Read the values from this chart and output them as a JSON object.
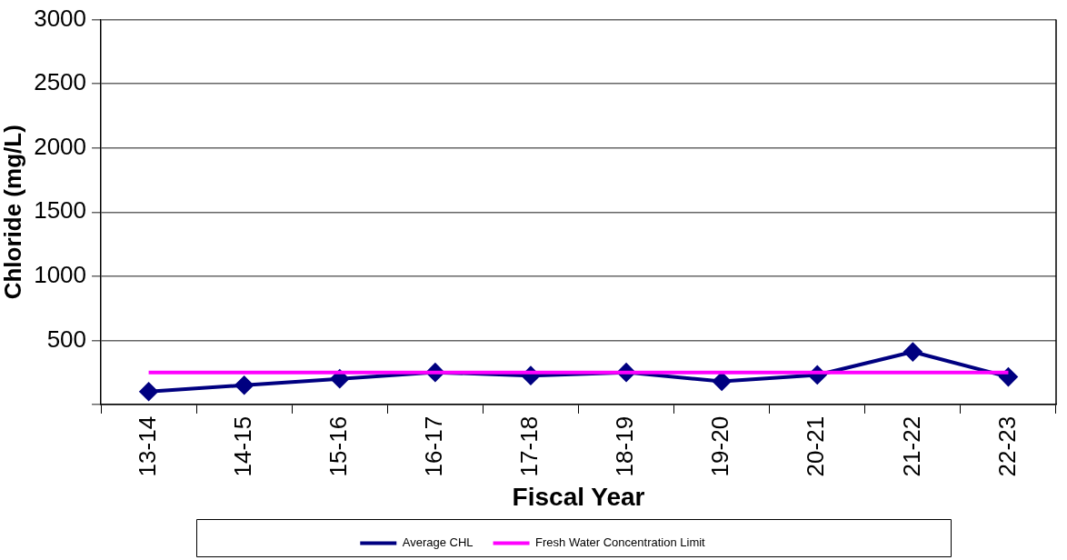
{
  "chart_data": {
    "type": "line",
    "xlabel": "Fiscal Year",
    "ylabel": "Chloride (mg/L)",
    "categories": [
      "13-14",
      "14-15",
      "15-16",
      "16-17",
      "17-18",
      "18-19",
      "19-20",
      "20-21",
      "21-22",
      "22-23"
    ],
    "series": [
      {
        "name": "Average CHL",
        "color": "#000080",
        "marker": "diamond",
        "values": [
          100,
          150,
          200,
          250,
          225,
          250,
          180,
          230,
          410,
          215
        ]
      },
      {
        "name": "Fresh Water Concentration Limit",
        "color": "#ff00ff",
        "marker": "none",
        "values": [
          250,
          250,
          250,
          250,
          250,
          250,
          250,
          250,
          250,
          250
        ]
      }
    ],
    "ylim": [
      0,
      3000
    ],
    "yticks": [
      {
        "value": 0,
        "label": null
      },
      500,
      1000,
      1500,
      2000,
      2500,
      3000
    ],
    "grid": "y",
    "legend": "bottom",
    "line_style": "solid"
  }
}
